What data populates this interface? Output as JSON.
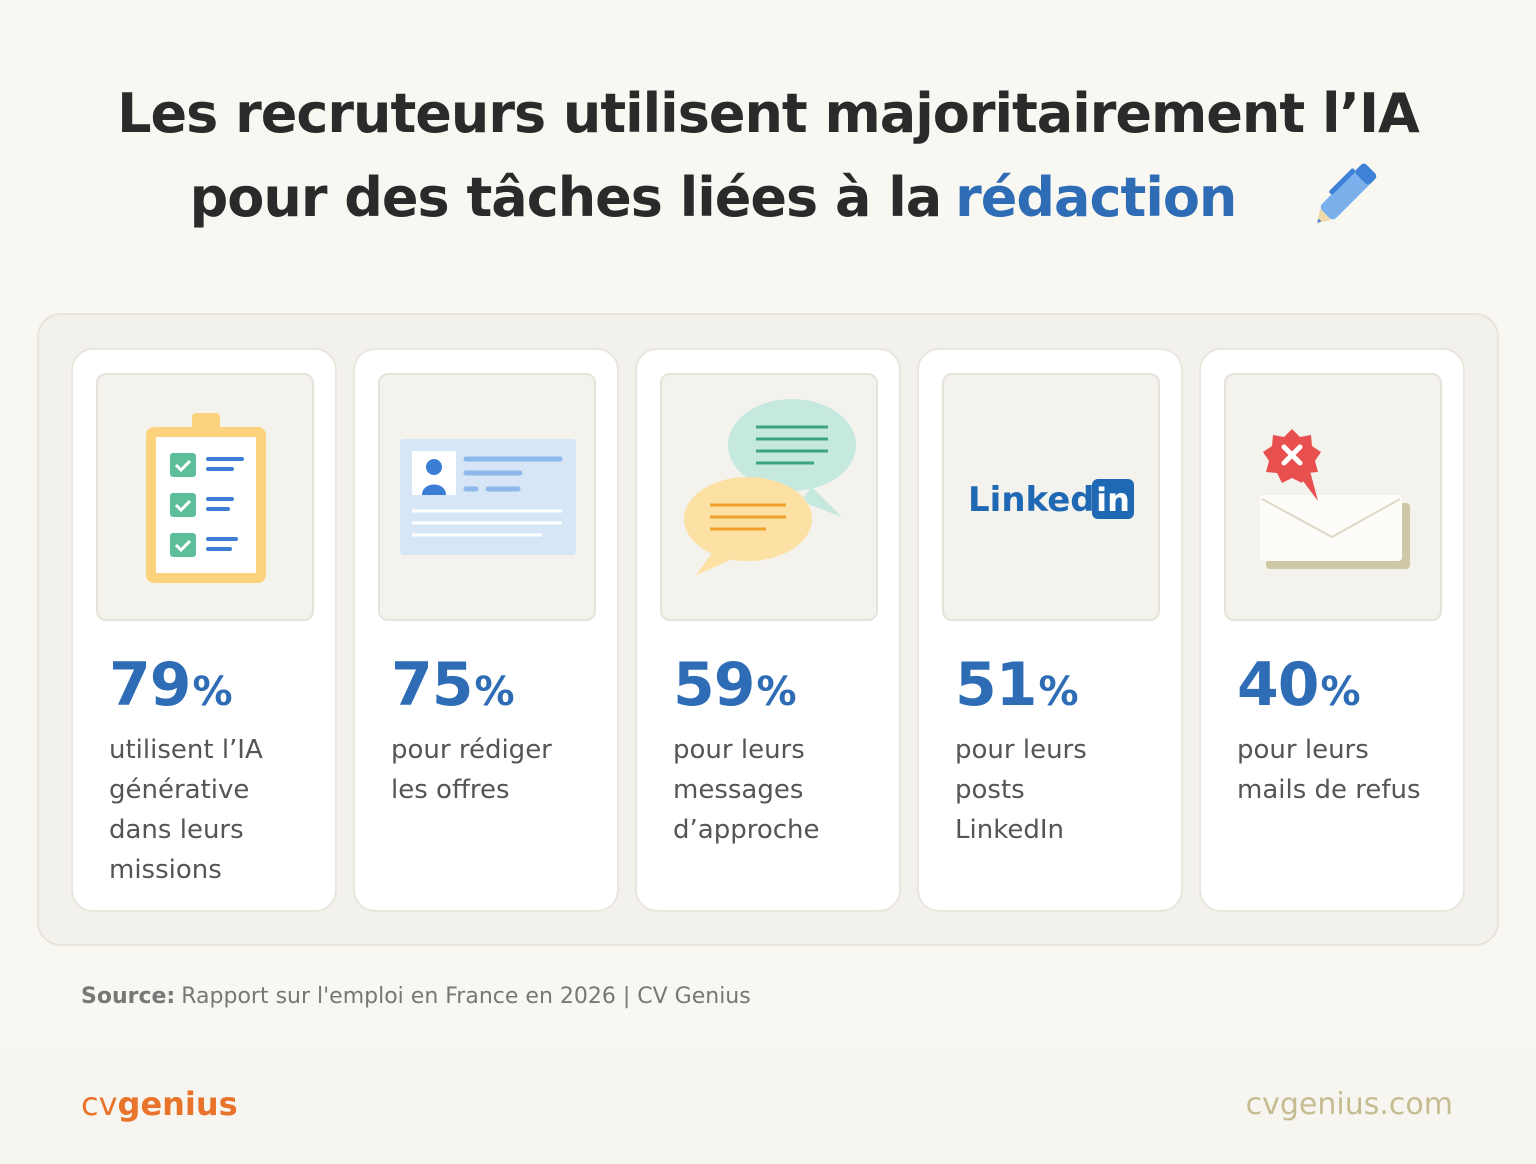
{
  "header": {
    "title_line1": "Les recruteurs utilisent majoritairement l’IA",
    "title_line2": "pour des tâches liées à la",
    "highlight": "rédaction"
  },
  "cards": [
    {
      "value": 79,
      "unit": "%",
      "lines": [
        "utilisent l’IA",
        "générative",
        "dans leurs",
        "missions"
      ]
    },
    {
      "value": 75,
      "unit": "%",
      "lines": [
        "pour rédiger",
        "les offres"
      ]
    },
    {
      "value": 59,
      "unit": "%",
      "lines": [
        "pour leurs",
        "messages",
        "d’approche"
      ]
    },
    {
      "value": 51,
      "unit": "%",
      "lines": [
        "pour leurs",
        "posts",
        "LinkedIn"
      ],
      "icon_text": [
        "Linked",
        "in"
      ]
    },
    {
      "value": 40,
      "unit": "%",
      "lines": [
        "pour leurs",
        "mails de refus"
      ]
    }
  ],
  "source": {
    "label": "Source:",
    "text": "Rapport sur l'emploi en France en 2026 | CV Genius"
  },
  "footer": {
    "logo_light": "cv",
    "logo_bold": "genius",
    "url": "cvgenius.com"
  }
}
